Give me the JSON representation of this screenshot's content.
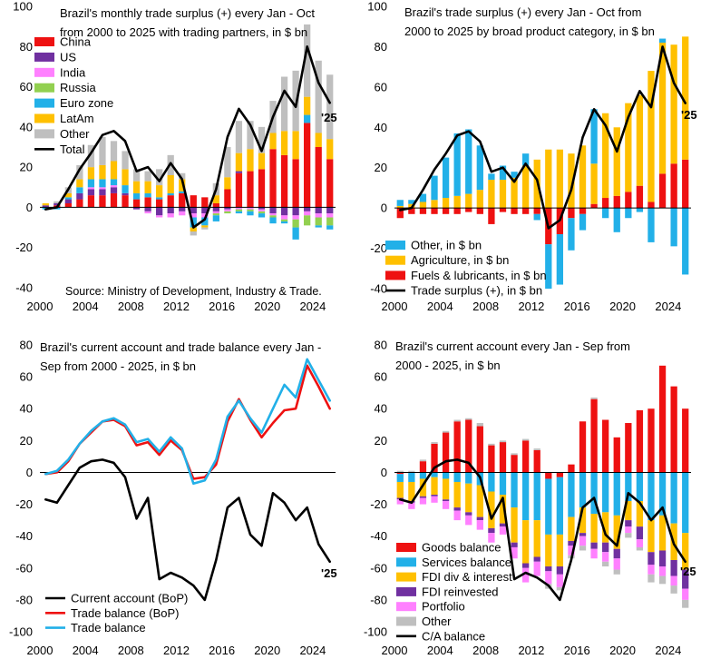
{
  "chart_data": [
    {
      "type": "stacked-bar-line",
      "title_lines": [
        "Brazil's monthly trade surplus (+)  every Jan - Oct",
        "from 2000 to 2025 with trading partners, in $ bn"
      ],
      "source": "Source: Ministry of Development, Industry & Trade.",
      "end_label": "'25",
      "ylim": [
        -40,
        100
      ],
      "yticks": [
        -40,
        -20,
        0,
        20,
        40,
        60,
        80,
        100
      ],
      "xticks": [
        "2000",
        "2004",
        "2008",
        "2012",
        "2016",
        "2020",
        "2024"
      ],
      "years": [
        2000,
        2001,
        2002,
        2003,
        2004,
        2005,
        2006,
        2007,
        2008,
        2009,
        2010,
        2011,
        2012,
        2013,
        2014,
        2015,
        2016,
        2017,
        2018,
        2019,
        2020,
        2021,
        2022,
        2023,
        2024,
        2025
      ],
      "bar_series": [
        {
          "name": "China",
          "color": "#ee1111",
          "values": [
            0,
            1,
            2,
            4,
            6,
            6,
            7,
            6,
            4,
            5,
            4,
            6,
            7,
            6,
            5,
            2,
            9,
            17,
            18,
            19,
            29,
            26,
            24,
            42,
            30,
            24
          ]
        },
        {
          "name": "US",
          "color": "#7030a0",
          "values": [
            1,
            1,
            2,
            3,
            3,
            3,
            3,
            1,
            -1,
            -2,
            -4,
            -3,
            -2,
            -3,
            -3,
            -2,
            -1,
            1,
            0,
            -1,
            -3,
            -4,
            -4,
            -2,
            -3,
            -3
          ]
        },
        {
          "name": "India",
          "color": "#ff80ff",
          "values": [
            0,
            0,
            0,
            0,
            1,
            1,
            1,
            0,
            0,
            -1,
            -1,
            -2,
            -2,
            -2,
            -2,
            -1,
            -1,
            -1,
            -1,
            -1,
            -1,
            -2,
            -2,
            -2,
            -2,
            -2
          ]
        },
        {
          "name": "Russia",
          "color": "#92d050",
          "values": [
            0,
            0,
            0,
            0,
            0,
            0,
            0,
            0,
            0,
            0,
            0,
            0,
            0,
            0,
            0,
            -1,
            -1,
            -1,
            -1,
            -1,
            -1,
            -1,
            -4,
            -5,
            -4,
            -4
          ]
        },
        {
          "name": "Euro zone",
          "color": "#22b0e8",
          "values": [
            -1,
            -1,
            1,
            3,
            4,
            4,
            3,
            4,
            3,
            2,
            1,
            1,
            1,
            -5,
            -4,
            -3,
            0,
            -1,
            -2,
            -2,
            -3,
            -1,
            -6,
            4,
            -1,
            -2
          ]
        },
        {
          "name": "LatAm",
          "color": "#ffc000",
          "values": [
            1,
            0,
            2,
            4,
            6,
            7,
            9,
            8,
            6,
            6,
            6,
            9,
            6,
            -2,
            -1,
            4,
            6,
            9,
            11,
            8,
            8,
            12,
            14,
            9,
            7,
            10
          ]
        },
        {
          "name": "Other",
          "color": "#bfbfbf",
          "values": [
            0,
            1,
            3,
            7,
            11,
            14,
            10,
            9,
            6,
            5,
            8,
            10,
            3,
            -2,
            -1,
            6,
            15,
            16,
            14,
            13,
            16,
            27,
            30,
            36,
            36,
            32
          ]
        }
      ],
      "line_series": [
        {
          "name": "Total",
          "color": "#000000",
          "values": [
            -1,
            0,
            9,
            19,
            27,
            36,
            38,
            33,
            18,
            20,
            13,
            22,
            14,
            -10,
            -6,
            9,
            35,
            49,
            41,
            28,
            45,
            58,
            50,
            80,
            62,
            52
          ]
        }
      ],
      "legend": [
        {
          "name": "China",
          "color": "#ee1111",
          "kind": "box"
        },
        {
          "name": "US",
          "color": "#7030a0",
          "kind": "box"
        },
        {
          "name": "India",
          "color": "#ff80ff",
          "kind": "box"
        },
        {
          "name": "Russia",
          "color": "#92d050",
          "kind": "box"
        },
        {
          "name": "Euro zone",
          "color": "#22b0e8",
          "kind": "box"
        },
        {
          "name": "LatAm",
          "color": "#ffc000",
          "kind": "box"
        },
        {
          "name": "Other",
          "color": "#bfbfbf",
          "kind": "box"
        },
        {
          "name": "Total",
          "color": "#000000",
          "kind": "line"
        }
      ]
    },
    {
      "type": "stacked-bar-line",
      "title_lines": [
        "Brazil's trade surplus (+)  every Jan - Oct from",
        "2000 to 2025 by broad product category, in $ bn"
      ],
      "end_label": "'25",
      "ylim": [
        -40,
        100
      ],
      "yticks": [
        -40,
        -20,
        0,
        20,
        40,
        60,
        80,
        100
      ],
      "xticks": [
        "2000",
        "2004",
        "2008",
        "2012",
        "2016",
        "2020",
        "2024"
      ],
      "years": [
        2000,
        2001,
        2002,
        2003,
        2004,
        2005,
        2006,
        2007,
        2008,
        2009,
        2010,
        2011,
        2012,
        2013,
        2014,
        2015,
        2016,
        2017,
        2018,
        2019,
        2020,
        2021,
        2022,
        2023,
        2024,
        2025
      ],
      "bar_series": [
        {
          "name": "Fuels & lubricants, in $ bn",
          "color": "#ee1111",
          "values": [
            -5,
            -3,
            -3,
            -3,
            -3,
            -3,
            -2,
            -3,
            -8,
            -2,
            -3,
            -3,
            -3,
            -18,
            -13,
            -5,
            -3,
            2,
            5,
            6,
            8,
            11,
            3,
            17,
            22,
            24
          ]
        },
        {
          "name": "Agriculture, in $ bn",
          "color": "#ffc000",
          "values": [
            1,
            2,
            3,
            4,
            5,
            6,
            7,
            9,
            14,
            14,
            15,
            21,
            24,
            29,
            29,
            27,
            31,
            20,
            42,
            34,
            44,
            45,
            65,
            65,
            59,
            61
          ]
        },
        {
          "name": "Other, in $ bn",
          "color": "#22b0e8",
          "values": [
            3,
            2,
            4,
            12,
            20,
            31,
            32,
            22,
            3,
            7,
            3,
            6,
            -3,
            -22,
            -25,
            -16,
            -8,
            27,
            -5,
            -12,
            -5,
            -2,
            -17,
            2,
            -19,
            -33
          ]
        }
      ],
      "line_series": [
        {
          "name": "Trade surplus (+), in $ bn",
          "color": "#000000",
          "values": [
            -1,
            0,
            9,
            19,
            27,
            36,
            38,
            33,
            18,
            20,
            13,
            22,
            14,
            -10,
            -6,
            9,
            35,
            49,
            41,
            28,
            45,
            58,
            50,
            80,
            62,
            52
          ]
        }
      ],
      "legend": [
        {
          "name": "Other, in $ bn",
          "color": "#22b0e8",
          "kind": "box"
        },
        {
          "name": "Agriculture, in $ bn",
          "color": "#ffc000",
          "kind": "box"
        },
        {
          "name": "Fuels & lubricants, in $ bn",
          "color": "#ee1111",
          "kind": "box"
        },
        {
          "name": "Trade surplus (+), in $ bn",
          "color": "#000000",
          "kind": "line"
        }
      ]
    },
    {
      "type": "line",
      "title_lines": [
        "Brazil's current account and trade balance every Jan -",
        "Sep from 2000 - 2025, in $ bn"
      ],
      "end_label": "'25",
      "ylim": [
        -100,
        80
      ],
      "yticks": [
        -100,
        -80,
        -60,
        -40,
        -20,
        0,
        20,
        40,
        60,
        80
      ],
      "xticks": [
        "2000",
        "2004",
        "2008",
        "2012",
        "2016",
        "2020",
        "2024"
      ],
      "years": [
        2000,
        2001,
        2002,
        2003,
        2004,
        2005,
        2006,
        2007,
        2008,
        2009,
        2010,
        2011,
        2012,
        2013,
        2014,
        2015,
        2016,
        2017,
        2018,
        2019,
        2020,
        2021,
        2022,
        2023,
        2024,
        2025
      ],
      "bar_series": [],
      "line_series": [
        {
          "name": "Current account (BoP)",
          "color": "#000000",
          "values": [
            -17,
            -19,
            -8,
            3,
            7,
            8,
            6,
            -3,
            -29,
            -16,
            -67,
            -63,
            -66,
            -71,
            -80,
            -55,
            -22,
            -16,
            -39,
            -46,
            -13,
            -19,
            -30,
            -22,
            -45,
            -56
          ]
        },
        {
          "name": "Trade balance (BoP)",
          "color": "#ee1111",
          "values": [
            -1,
            0,
            7,
            18,
            25,
            32,
            33,
            29,
            17,
            19,
            11,
            20,
            14,
            -4,
            -3,
            5,
            32,
            46,
            33,
            22,
            31,
            39,
            40,
            67,
            54,
            40
          ]
        },
        {
          "name": "Trade balance",
          "color": "#22b0e8",
          "values": [
            -1,
            1,
            8,
            18,
            26,
            32,
            34,
            30,
            19,
            21,
            13,
            22,
            15,
            -7,
            -5,
            8,
            35,
            45,
            34,
            25,
            40,
            55,
            47,
            71,
            58,
            45
          ]
        }
      ],
      "legend": [
        {
          "name": "Current account (BoP)",
          "color": "#000000",
          "kind": "line"
        },
        {
          "name": "Trade balance (BoP)",
          "color": "#ee1111",
          "kind": "line"
        },
        {
          "name": "Trade balance",
          "color": "#22b0e8",
          "kind": "line"
        }
      ]
    },
    {
      "type": "stacked-bar-line",
      "title_lines": [
        "Brazil's current account every Jan - Sep from",
        "2000 - 2025, in $ bn"
      ],
      "end_label": "'25",
      "ylim": [
        -100,
        80
      ],
      "yticks": [
        -100,
        -80,
        -60,
        -40,
        -20,
        0,
        20,
        40,
        60,
        80
      ],
      "xticks": [
        "2000",
        "2004",
        "2008",
        "2012",
        "2016",
        "2020",
        "2024"
      ],
      "years": [
        2000,
        2001,
        2002,
        2003,
        2004,
        2005,
        2006,
        2007,
        2008,
        2009,
        2010,
        2011,
        2012,
        2013,
        2014,
        2015,
        2016,
        2017,
        2018,
        2019,
        2020,
        2021,
        2022,
        2023,
        2024,
        2025
      ],
      "bar_series": [
        {
          "name": "Goods balance",
          "color": "#ee1111",
          "values": [
            -1,
            0,
            7,
            18,
            25,
            32,
            33,
            29,
            17,
            19,
            11,
            20,
            14,
            -4,
            -3,
            5,
            32,
            46,
            33,
            22,
            31,
            39,
            40,
            67,
            54,
            40
          ]
        },
        {
          "name": "Services balance",
          "color": "#22b0e8",
          "values": [
            -5,
            -6,
            -4,
            -3,
            -4,
            -6,
            -7,
            -8,
            -12,
            -14,
            -22,
            -30,
            -30,
            -35,
            -36,
            -28,
            -22,
            -26,
            -25,
            -27,
            -18,
            -18,
            -30,
            -27,
            -32,
            -38
          ]
        },
        {
          "name": "FDI div & interest",
          "color": "#ffc000",
          "values": [
            -10,
            -12,
            -11,
            -11,
            -13,
            -16,
            -18,
            -20,
            -23,
            -18,
            -22,
            -27,
            -23,
            -20,
            -20,
            -15,
            -16,
            -18,
            -19,
            -21,
            -12,
            -16,
            -20,
            -22,
            -23,
            -23
          ]
        },
        {
          "name": "FDI reinvested",
          "color": "#7030a0",
          "values": [
            -1,
            -1,
            -1,
            -1,
            -1,
            -2,
            -2,
            -2,
            -3,
            -2,
            -3,
            -3,
            -3,
            -3,
            -5,
            -3,
            -2,
            -4,
            -6,
            -6,
            -4,
            -8,
            -8,
            -10,
            -10,
            -12
          ]
        },
        {
          "name": "Portfolio",
          "color": "#ff80ff",
          "values": [
            -3,
            -4,
            -4,
            -4,
            -5,
            -6,
            -6,
            -6,
            -6,
            -5,
            -7,
            -9,
            -9,
            -8,
            -8,
            -6,
            -6,
            -6,
            -6,
            -7,
            -4,
            -5,
            -6,
            -6,
            -6,
            -7
          ]
        },
        {
          "name": "Other",
          "color": "#bfbfbf",
          "values": [
            1,
            1,
            1,
            1,
            1,
            1,
            1,
            2,
            1,
            1,
            1,
            1,
            1,
            -3,
            -2,
            -2,
            -3,
            1,
            -3,
            -3,
            -3,
            -2,
            -5,
            -5,
            -5,
            -5
          ]
        }
      ],
      "line_series": [
        {
          "name": "C/A balance",
          "color": "#000000",
          "values": [
            -17,
            -19,
            -8,
            3,
            7,
            8,
            6,
            -3,
            -29,
            -16,
            -67,
            -63,
            -66,
            -71,
            -80,
            -55,
            -22,
            -16,
            -39,
            -46,
            -13,
            -19,
            -30,
            -22,
            -45,
            -56
          ]
        }
      ],
      "legend": [
        {
          "name": "Goods balance",
          "color": "#ee1111",
          "kind": "box"
        },
        {
          "name": "Services balance",
          "color": "#22b0e8",
          "kind": "box"
        },
        {
          "name": "FDI div & interest",
          "color": "#ffc000",
          "kind": "box"
        },
        {
          "name": "FDI reinvested",
          "color": "#7030a0",
          "kind": "box"
        },
        {
          "name": "Portfolio",
          "color": "#ff80ff",
          "kind": "box"
        },
        {
          "name": "Other",
          "color": "#bfbfbf",
          "kind": "box"
        },
        {
          "name": "C/A balance",
          "color": "#000000",
          "kind": "line"
        }
      ]
    }
  ]
}
